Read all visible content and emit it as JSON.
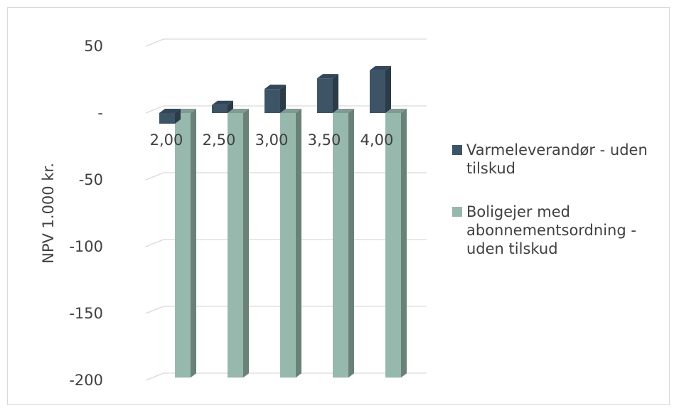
{
  "chart_data": {
    "type": "bar",
    "title": "",
    "xlabel": "",
    "ylabel": "NPV 1.000 kr.",
    "ylim": [
      -200,
      50
    ],
    "yticks": [
      50,
      0,
      -50,
      -100,
      -150,
      -200
    ],
    "ytick_labels": [
      "50",
      "-",
      "-50",
      "-100",
      "-150",
      "-200"
    ],
    "categories": [
      "2,00",
      "2,50",
      "3,00",
      "3,50",
      "4,00"
    ],
    "grid": true,
    "legend_position": "right",
    "series": [
      {
        "name": "Varmeleverandør - uden tilskud",
        "color": "#3d5467",
        "values": [
          -8,
          6,
          18,
          26,
          32
        ]
      },
      {
        "name": "Boligejer med abonnementsordning - uden tilskud",
        "color": "#97b8ac",
        "values": [
          -198,
          -198,
          -198,
          -198,
          -198
        ]
      }
    ]
  }
}
